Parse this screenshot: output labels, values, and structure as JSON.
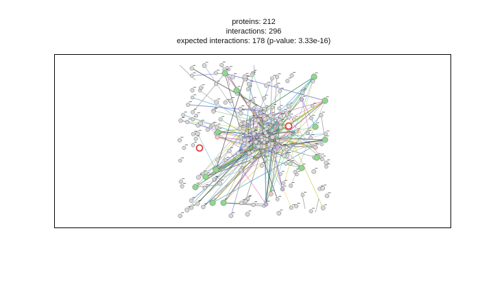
{
  "header": {
    "proteins": "proteins: 212",
    "interactions": "interactions: 296",
    "expected": "expected interactions: 178 (p-value: 3.33e-16)"
  },
  "network": {
    "node_colors": {
      "default": "#d9d9d9",
      "green": "#8fd88f",
      "red": "#e04040",
      "purple": "#c7b6e6",
      "pink": "#f2c6c6"
    },
    "edge_colors": [
      "#9a9a9a",
      "#5b6fd6",
      "#c9c93a",
      "#d45aa8",
      "#3aa0c9",
      "#4caf50",
      "#444444"
    ]
  }
}
